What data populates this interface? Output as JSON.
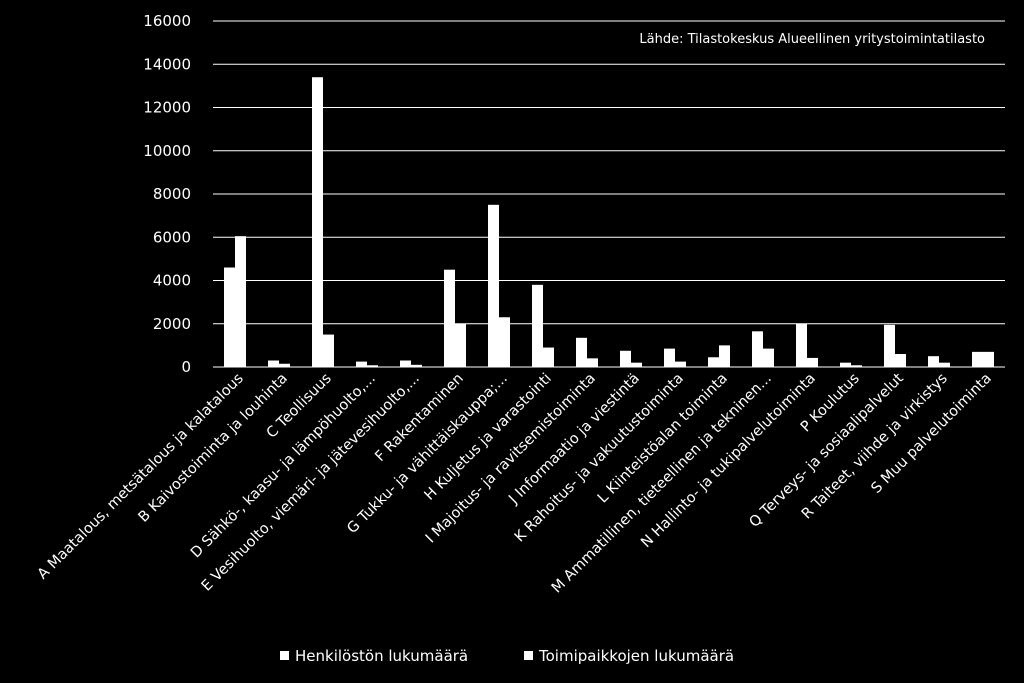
{
  "chart_data": {
    "type": "bar",
    "title": "",
    "xlabel": "",
    "ylabel": "",
    "ylim": [
      0,
      16000
    ],
    "yticks": [
      0,
      2000,
      4000,
      6000,
      8000,
      10000,
      12000,
      14000,
      16000
    ],
    "grid": true,
    "legend_position": "bottom",
    "annotation": "Lähde: Tilastokeskus Alueellinen yritystoimintatilasto",
    "categories": [
      "A Maatalous, metsätalous ja kalatalous",
      "B Kaivostoiminta ja louhinta",
      "C Teollisuus",
      "D Sähkö-, kaasu- ja lämpöhuolto,...",
      "E Vesihuolto, viemäri- ja jätevesihuolto,...",
      "F Rakentaminen",
      "G Tukku- ja vähittäiskauppa;...",
      "H Kuljetus ja varastointi",
      "I Majoitus- ja ravitsemistoiminta",
      "J Informaatio ja viestintä",
      "K Rahoitus- ja vakuutustoiminta",
      "L Kiinteistöalan toiminta",
      "M Ammatillinen, tieteellinen ja tekninen...",
      "N Hallinto- ja tukipalvelutoiminta",
      "P Koulutus",
      "Q Terveys- ja sosiaalipalvelut",
      "R Taiteet, viihde ja virkistys",
      "S Muu palvelutoiminta"
    ],
    "series": [
      {
        "name": "Henkilöstön lukumäärä",
        "color": "#ffffff",
        "values": [
          4600,
          300,
          13400,
          250,
          300,
          4500,
          7500,
          3800,
          1350,
          750,
          850,
          450,
          1650,
          2000,
          200,
          1950,
          500,
          700
        ]
      },
      {
        "name": "Toimipaikkojen lukumäärä",
        "color": "#ffffff",
        "values": [
          6050,
          150,
          1500,
          80,
          100,
          2000,
          2300,
          900,
          400,
          200,
          250,
          1000,
          850,
          420,
          80,
          600,
          200,
          700
        ]
      }
    ]
  }
}
